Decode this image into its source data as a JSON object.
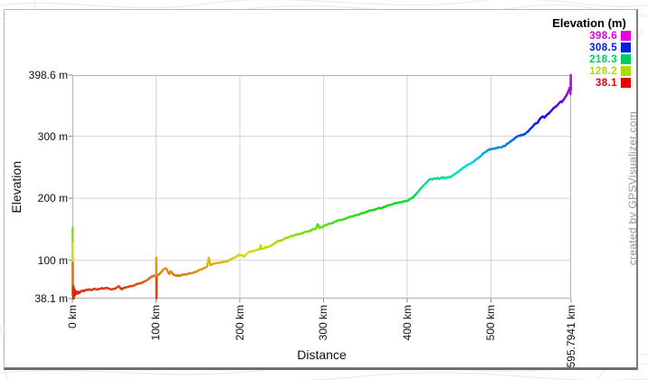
{
  "credit": "created by GPSVisualizer.com",
  "colors": {
    "grid": "#d4d4d4",
    "plot_border": "#b3b3b3",
    "tick": "#888888",
    "background": "#ffffff",
    "contour_lines": "#f3eae1"
  },
  "chart_data": {
    "type": "line",
    "title": "",
    "xlabel": "Distance",
    "ylabel": "Elevation",
    "x_unit": "km",
    "y_unit": "m",
    "xlim": [
      0,
      595.7941
    ],
    "ylim": [
      38.1,
      398.6
    ],
    "grid": true,
    "color_by": "elevation",
    "color_scale": {
      "min": 38.1,
      "max": 398.6,
      "hue_range_deg": [
        0,
        300
      ]
    },
    "x_ticks": [
      {
        "value": 0,
        "label": "0 km"
      },
      {
        "value": 100,
        "label": "100 km"
      },
      {
        "value": 200,
        "label": "200 km"
      },
      {
        "value": 300,
        "label": "300 km"
      },
      {
        "value": 400,
        "label": "400 km"
      },
      {
        "value": 500,
        "label": "500 km"
      },
      {
        "value": 595.7941,
        "label": "595.7941 km"
      }
    ],
    "y_ticks": [
      {
        "value": 38.1,
        "label": "38.1 m"
      },
      {
        "value": 100,
        "label": "100 m"
      },
      {
        "value": 200,
        "label": "200 m"
      },
      {
        "value": 300,
        "label": "300 m"
      },
      {
        "value": 398.6,
        "label": "398.6 m"
      }
    ],
    "legend": {
      "title": "Elevation (m)",
      "position": "top-right",
      "entries": [
        {
          "label": "398.6",
          "color": "#e000e0"
        },
        {
          "label": "308.5",
          "color": "#0022e0"
        },
        {
          "label": "218.3",
          "color": "#00cc66"
        },
        {
          "label": "128.2",
          "color": "#aadd00"
        },
        {
          "label": "38.1",
          "color": "#e60000"
        }
      ]
    },
    "profile": [
      [
        0,
        44
      ],
      [
        0.2,
        152
      ],
      [
        0.35,
        128
      ],
      [
        0.5,
        96
      ],
      [
        0.7,
        52
      ],
      [
        0.9,
        40
      ],
      [
        1.2,
        58
      ],
      [
        1.5,
        38.1
      ],
      [
        1.9,
        54
      ],
      [
        2.3,
        42
      ],
      [
        2.7,
        52
      ],
      [
        3.1,
        44
      ],
      [
        3.6,
        50
      ],
      [
        4.2,
        46
      ],
      [
        5,
        49
      ],
      [
        6,
        46
      ],
      [
        7,
        49
      ],
      [
        8,
        47
      ],
      [
        9,
        48
      ],
      [
        10,
        50
      ],
      [
        12,
        51
      ],
      [
        14,
        50
      ],
      [
        16,
        52
      ],
      [
        18,
        52
      ],
      [
        20,
        53
      ],
      [
        23,
        52
      ],
      [
        26,
        54
      ],
      [
        29,
        53
      ],
      [
        32,
        54
      ],
      [
        35,
        55
      ],
      [
        38,
        54
      ],
      [
        41,
        55
      ],
      [
        44,
        54
      ],
      [
        47,
        53
      ],
      [
        50,
        54
      ],
      [
        53,
        56
      ],
      [
        55,
        58
      ],
      [
        57,
        55
      ],
      [
        59,
        53
      ],
      [
        61,
        55
      ],
      [
        64,
        56
      ],
      [
        67,
        57
      ],
      [
        70,
        58
      ],
      [
        73,
        59
      ],
      [
        76,
        61
      ],
      [
        79,
        62
      ],
      [
        82,
        63
      ],
      [
        85,
        65
      ],
      [
        88,
        67
      ],
      [
        91,
        70
      ],
      [
        93,
        72
      ],
      [
        95,
        74
      ],
      [
        97,
        75
      ],
      [
        99,
        74
      ],
      [
        100,
        75
      ],
      [
        100.2,
        104
      ],
      [
        100.35,
        70
      ],
      [
        100.5,
        38.3
      ],
      [
        100.7,
        74
      ],
      [
        102,
        76
      ],
      [
        104,
        78
      ],
      [
        106,
        81
      ],
      [
        108,
        84
      ],
      [
        110,
        86
      ],
      [
        111.5,
        87
      ],
      [
        113,
        85
      ],
      [
        114.5,
        80
      ],
      [
        116,
        78
      ],
      [
        117.5,
        82
      ],
      [
        119,
        80
      ],
      [
        120.5,
        77
      ],
      [
        122,
        76
      ],
      [
        124,
        75
      ],
      [
        126,
        76
      ],
      [
        128,
        75
      ],
      [
        130,
        76
      ],
      [
        134,
        77
      ],
      [
        138,
        78
      ],
      [
        142,
        79
      ],
      [
        146,
        81
      ],
      [
        150,
        83
      ],
      [
        154,
        85
      ],
      [
        158,
        88
      ],
      [
        161,
        90
      ],
      [
        163,
        104
      ],
      [
        165,
        92
      ],
      [
        168,
        94
      ],
      [
        171,
        95
      ],
      [
        174,
        96
      ],
      [
        177,
        96
      ],
      [
        180,
        97
      ],
      [
        183,
        98
      ],
      [
        186,
        99
      ],
      [
        189,
        101
      ],
      [
        192,
        103
      ],
      [
        195,
        105
      ],
      [
        198,
        107
      ],
      [
        200,
        109
      ],
      [
        203,
        108
      ],
      [
        205,
        106
      ],
      [
        207,
        109
      ],
      [
        210,
        112
      ],
      [
        213,
        114
      ],
      [
        216,
        115
      ],
      [
        219,
        116
      ],
      [
        222,
        117
      ],
      [
        224,
        118
      ],
      [
        225,
        124
      ],
      [
        226,
        118
      ],
      [
        229,
        119
      ],
      [
        232,
        121
      ],
      [
        235,
        122
      ],
      [
        238,
        124
      ],
      [
        241,
        127
      ],
      [
        244,
        130
      ],
      [
        247,
        131
      ],
      [
        250,
        132
      ],
      [
        253,
        134
      ],
      [
        256,
        136
      ],
      [
        259,
        137
      ],
      [
        262,
        139
      ],
      [
        265,
        140
      ],
      [
        268,
        141
      ],
      [
        271,
        142
      ],
      [
        274,
        144
      ],
      [
        277,
        145
      ],
      [
        280,
        146
      ],
      [
        283,
        147
      ],
      [
        286,
        149
      ],
      [
        289,
        150
      ],
      [
        291,
        151
      ],
      [
        293,
        158
      ],
      [
        295,
        152
      ],
      [
        297,
        153
      ],
      [
        300,
        155
      ],
      [
        304,
        157
      ],
      [
        308,
        159
      ],
      [
        312,
        161
      ],
      [
        316,
        163
      ],
      [
        320,
        165
      ],
      [
        324,
        166
      ],
      [
        328,
        168
      ],
      [
        332,
        170
      ],
      [
        336,
        171
      ],
      [
        340,
        173
      ],
      [
        344,
        175
      ],
      [
        348,
        176
      ],
      [
        352,
        178
      ],
      [
        356,
        180
      ],
      [
        360,
        181
      ],
      [
        364,
        183
      ],
      [
        368,
        184
      ],
      [
        372,
        186
      ],
      [
        376,
        188
      ],
      [
        380,
        189
      ],
      [
        384,
        191
      ],
      [
        388,
        192
      ],
      [
        392,
        193
      ],
      [
        396,
        195
      ],
      [
        400,
        196
      ],
      [
        402,
        197
      ],
      [
        404,
        199
      ],
      [
        406,
        201
      ],
      [
        408,
        203
      ],
      [
        410,
        206
      ],
      [
        412,
        209
      ],
      [
        414,
        212
      ],
      [
        416,
        215
      ],
      [
        418,
        218
      ],
      [
        420,
        221
      ],
      [
        422,
        224
      ],
      [
        424,
        227
      ],
      [
        426,
        229
      ],
      [
        428,
        231
      ],
      [
        430,
        230
      ],
      [
        432,
        232
      ],
      [
        434,
        231
      ],
      [
        436,
        233
      ],
      [
        438,
        231
      ],
      [
        440,
        232
      ],
      [
        442,
        234
      ],
      [
        444,
        232
      ],
      [
        446,
        233
      ],
      [
        448,
        233
      ],
      [
        450,
        234
      ],
      [
        452,
        235
      ],
      [
        454,
        236
      ],
      [
        456,
        238
      ],
      [
        458,
        240
      ],
      [
        460,
        242
      ],
      [
        462,
        244
      ],
      [
        464,
        246
      ],
      [
        466,
        248
      ],
      [
        468,
        250
      ],
      [
        470,
        252
      ],
      [
        472,
        253
      ],
      [
        474,
        255
      ],
      [
        476,
        256
      ],
      [
        478,
        258
      ],
      [
        480,
        260
      ],
      [
        482,
        262
      ],
      [
        484,
        264
      ],
      [
        486,
        266
      ],
      [
        488,
        268
      ],
      [
        490,
        271
      ],
      [
        492,
        273
      ],
      [
        494,
        275
      ],
      [
        496,
        277
      ],
      [
        498,
        278
      ],
      [
        500,
        279
      ],
      [
        502,
        280
      ],
      [
        504,
        280
      ],
      [
        506,
        281
      ],
      [
        508,
        281
      ],
      [
        510,
        282
      ],
      [
        512,
        282
      ],
      [
        514,
        283
      ],
      [
        516,
        284
      ],
      [
        518,
        286
      ],
      [
        520,
        288
      ],
      [
        522,
        290
      ],
      [
        524,
        292
      ],
      [
        526,
        294
      ],
      [
        528,
        296
      ],
      [
        530,
        298
      ],
      [
        532,
        300
      ],
      [
        534,
        301
      ],
      [
        536,
        302
      ],
      [
        538,
        302
      ],
      [
        540,
        303
      ],
      [
        542,
        305
      ],
      [
        544,
        307
      ],
      [
        546,
        310
      ],
      [
        548,
        313
      ],
      [
        550,
        316
      ],
      [
        552,
        319
      ],
      [
        554,
        321
      ],
      [
        556,
        322
      ],
      [
        558,
        327
      ],
      [
        560,
        330
      ],
      [
        562,
        332
      ],
      [
        564,
        330
      ],
      [
        566,
        333
      ],
      [
        568,
        336
      ],
      [
        570,
        338
      ],
      [
        572,
        341
      ],
      [
        574,
        344
      ],
      [
        576,
        346
      ],
      [
        578,
        348
      ],
      [
        580,
        351
      ],
      [
        582,
        354
      ],
      [
        584,
        356
      ],
      [
        585,
        355
      ],
      [
        586,
        358
      ],
      [
        588,
        361
      ],
      [
        590,
        365
      ],
      [
        591,
        368
      ],
      [
        592,
        371
      ],
      [
        593,
        374
      ],
      [
        594,
        378
      ],
      [
        595,
        368
      ],
      [
        595.4,
        398.6
      ],
      [
        595.7941,
        375
      ]
    ]
  }
}
